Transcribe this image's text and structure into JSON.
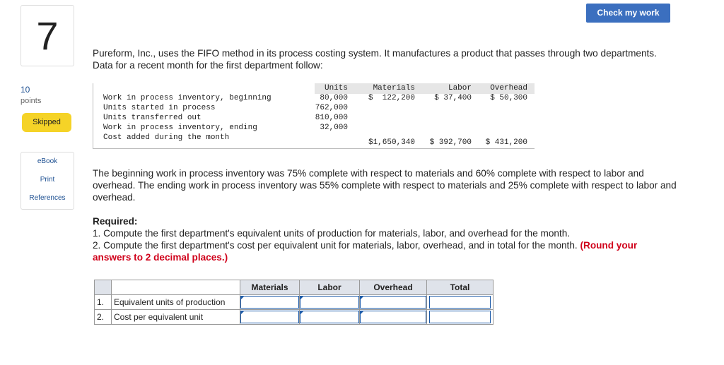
{
  "question_number": "7",
  "check_button": "Check my work",
  "points": {
    "value": "10",
    "label": "points"
  },
  "status": "Skipped",
  "side_links": [
    "eBook",
    "Print",
    "References"
  ],
  "intro": "Pureform, Inc., uses the FIFO method in its process costing system. It manufactures a product that passes through two departments. Data for a recent month for the first department follow:",
  "data_table": {
    "headers": [
      "Units",
      "Materials",
      "Labor",
      "Overhead"
    ],
    "rows": [
      {
        "label": "Work in process inventory, beginning",
        "units": "80,000",
        "materials": "$  122,200",
        "labor": "$ 37,400",
        "overhead": "$ 50,300"
      },
      {
        "label": "Units started in process",
        "units": "762,000"
      },
      {
        "label": "Units transferred out",
        "units": "810,000"
      },
      {
        "label": "Work in process inventory, ending",
        "units": "32,000"
      },
      {
        "label": "Cost added during the month",
        "materials": "$1,650,340",
        "labor": "$ 392,700",
        "overhead": "$ 431,200"
      }
    ]
  },
  "paragraph": "The beginning work in process inventory was 75% complete with respect to materials and 60% complete with respect to labor and overhead. The ending work in process inventory was 55% complete with respect to materials and 25% complete with respect to labor and overhead.",
  "required_title": "Required:",
  "required_items": [
    "1. Compute the first department's equivalent units of production for materials, labor, and overhead for the month.",
    "2. Compute the first department's cost per equivalent unit for materials, labor, overhead, and in total for the month."
  ],
  "round_note": "(Round your answers to 2 decimal places.)",
  "answer_table": {
    "headers": [
      "Materials",
      "Labor",
      "Overhead",
      "Total"
    ],
    "rows": [
      {
        "num": "1.",
        "label": "Equivalent units of production"
      },
      {
        "num": "2.",
        "label": "Cost per equivalent unit"
      }
    ]
  }
}
